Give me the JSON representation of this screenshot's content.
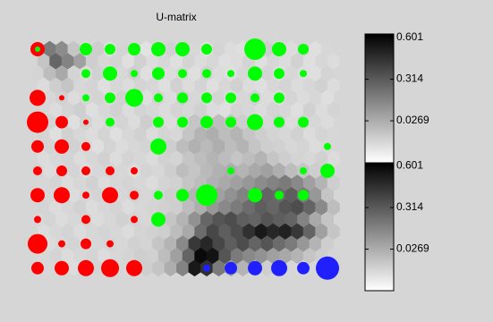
{
  "chart_data": {
    "type": "umatrix",
    "title": "U-matrix",
    "umatrix": [
      [
        -0.12,
        0.2,
        0.14,
        -0.06,
        -0.14,
        -0.09,
        -0.15,
        -0.11,
        -0.12,
        -0.16,
        -0.14,
        -0.1,
        -0.15,
        -0.12,
        -0.16,
        -0.11,
        -0.14,
        -0.15,
        -0.12,
        -0.09,
        -0.15,
        -0.14,
        -0.11,
        -0.15,
        -0.12
      ],
      [
        -0.06,
        0.27,
        0.17,
        0.07,
        -0.09,
        -0.12,
        -0.11,
        -0.15,
        -0.1,
        -0.14,
        -0.12,
        -0.15,
        -0.11,
        -0.14,
        -0.12,
        -0.15,
        -0.14,
        -0.11,
        -0.15,
        -0.12,
        -0.14,
        -0.1,
        -0.15,
        -0.12,
        -0.14
      ],
      [
        -0.11,
        -0.03,
        0.04,
        -0.11,
        -0.14,
        -0.1,
        -0.15,
        -0.12,
        -0.09,
        -0.15,
        -0.11,
        -0.14,
        -0.12,
        -0.15,
        -0.1,
        -0.14,
        -0.15,
        -0.12,
        -0.14,
        -0.11,
        -0.15,
        -0.12,
        -0.14,
        -0.15,
        -0.11
      ],
      [
        -0.14,
        -0.09,
        -0.06,
        -0.12,
        -0.11,
        -0.15,
        -0.12,
        -0.14,
        -0.11,
        -0.12,
        -0.15,
        -0.1,
        -0.14,
        -0.11,
        -0.15,
        -0.12,
        -0.1,
        -0.14,
        -0.15,
        -0.12,
        -0.11,
        -0.14,
        -0.12,
        -0.1,
        -0.14
      ],
      [
        -0.15,
        -0.12,
        -0.1,
        -0.14,
        -0.12,
        -0.11,
        -0.14,
        -0.1,
        -0.12,
        -0.15,
        -0.11,
        -0.14,
        -0.09,
        -0.12,
        -0.14,
        -0.11,
        -0.15,
        -0.12,
        -0.1,
        -0.14,
        -0.15,
        -0.11,
        -0.14,
        -0.12,
        -0.15
      ],
      [
        -0.12,
        -0.14,
        -0.11,
        -0.09,
        -0.15,
        -0.12,
        -0.1,
        -0.14,
        -0.11,
        -0.12,
        -0.14,
        -0.11,
        -0.12,
        -0.1,
        -0.14,
        -0.15,
        -0.11,
        -0.12,
        -0.14,
        -0.11,
        -0.12,
        -0.15,
        -0.1,
        -0.14,
        -0.11
      ],
      [
        -0.14,
        -0.11,
        -0.12,
        -0.15,
        -0.1,
        -0.14,
        -0.12,
        -0.11,
        -0.14,
        -0.09,
        -0.12,
        -0.14,
        -0.11,
        -0.06,
        -0.09,
        -0.03,
        -0.06,
        -0.09,
        -0.11,
        -0.12,
        -0.1,
        -0.14,
        -0.11,
        -0.12,
        -0.14
      ],
      [
        -0.11,
        -0.15,
        -0.1,
        -0.12,
        -0.14,
        -0.11,
        -0.15,
        -0.12,
        -0.1,
        -0.14,
        -0.11,
        -0.12,
        -0.06,
        0.0,
        0.02,
        -0.03,
        0.0,
        -0.06,
        -0.09,
        -0.11,
        -0.12,
        -0.1,
        -0.14,
        -0.11,
        -0.12
      ],
      [
        -0.12,
        -0.11,
        -0.14,
        -0.1,
        -0.12,
        -0.15,
        -0.11,
        -0.14,
        -0.12,
        -0.11,
        -0.14,
        -0.09,
        -0.03,
        0.01,
        -0.02,
        0.02,
        -0.03,
        0.0,
        -0.06,
        -0.09,
        -0.1,
        -0.12,
        -0.11,
        -0.14,
        -0.12
      ],
      [
        -0.14,
        -0.12,
        -0.11,
        -0.14,
        -0.12,
        -0.1,
        -0.14,
        -0.11,
        -0.12,
        -0.14,
        -0.1,
        -0.11,
        -0.06,
        -0.03,
        0.0,
        -0.03,
        -0.06,
        -0.03,
        0.0,
        -0.06,
        -0.09,
        -0.11,
        -0.12,
        -0.1,
        -0.14
      ],
      [
        -0.11,
        -0.14,
        -0.12,
        -0.11,
        -0.14,
        -0.12,
        -0.11,
        -0.12,
        -0.14,
        -0.11,
        -0.12,
        -0.09,
        -0.03,
        -0.06,
        -0.02,
        0.01,
        0.02,
        0.0,
        0.04,
        0.07,
        0.02,
        -0.03,
        -0.06,
        -0.09,
        -0.11
      ],
      [
        -0.12,
        -0.11,
        -0.14,
        -0.12,
        -0.1,
        -0.14,
        -0.12,
        -0.11,
        -0.12,
        -0.14,
        -0.11,
        -0.1,
        -0.06,
        -0.03,
        0.01,
        0.04,
        0.07,
        0.1,
        0.14,
        0.17,
        0.2,
        0.15,
        0.07,
        0.0,
        -0.09
      ],
      [
        -0.14,
        -0.12,
        -0.11,
        -0.14,
        -0.12,
        -0.11,
        -0.14,
        -0.12,
        -0.1,
        -0.12,
        -0.11,
        -0.09,
        -0.06,
        0.0,
        0.02,
        0.07,
        0.12,
        0.17,
        0.23,
        0.28,
        0.25,
        0.3,
        0.2,
        0.1,
        -0.06
      ],
      [
        -0.11,
        -0.14,
        -0.12,
        -0.1,
        -0.14,
        -0.12,
        -0.11,
        -0.14,
        -0.12,
        -0.11,
        -0.1,
        -0.09,
        -0.03,
        0.02,
        0.1,
        0.15,
        0.2,
        0.25,
        0.3,
        0.27,
        0.33,
        0.36,
        0.28,
        0.15,
        -0.03
      ],
      [
        -0.12,
        -0.11,
        -0.14,
        -0.12,
        -0.11,
        -0.14,
        -0.12,
        -0.1,
        -0.11,
        -0.12,
        -0.09,
        -0.06,
        0.0,
        0.12,
        0.27,
        0.33,
        0.36,
        0.3,
        0.28,
        0.33,
        0.3,
        0.28,
        0.17,
        0.04,
        -0.06
      ],
      [
        -0.14,
        -0.12,
        -0.11,
        -0.14,
        -0.12,
        -0.11,
        -0.12,
        -0.14,
        -0.11,
        -0.1,
        -0.09,
        -0.03,
        0.04,
        0.25,
        0.38,
        0.3,
        0.36,
        0.46,
        0.54,
        0.49,
        0.51,
        0.43,
        0.28,
        0.07,
        -0.06
      ],
      [
        -0.11,
        -0.14,
        -0.12,
        -0.11,
        -0.14,
        -0.12,
        -0.11,
        -0.12,
        -0.1,
        -0.11,
        -0.06,
        0.0,
        0.15,
        0.43,
        0.49,
        0.38,
        0.3,
        0.36,
        0.28,
        0.33,
        0.25,
        0.2,
        0.1,
        0.0,
        -0.09
      ],
      [
        -0.12,
        -0.11,
        -0.14,
        -0.12,
        -0.11,
        -0.14,
        -0.12,
        -0.11,
        -0.09,
        -0.1,
        -0.03,
        0.07,
        0.28,
        0.59,
        0.56,
        0.33,
        0.2,
        0.15,
        0.12,
        0.07,
        0.04,
        0.0,
        -0.06,
        -0.09,
        -0.11
      ],
      [
        -0.14,
        -0.12,
        -0.11,
        -0.14,
        -0.12,
        -0.11,
        -0.14,
        -0.12,
        -0.11,
        -0.09,
        -0.06,
        0.02,
        0.17,
        0.54,
        0.46,
        0.2,
        0.07,
        0.0,
        -0.06,
        -0.09,
        -0.11,
        -0.12,
        -0.14,
        -0.12,
        -0.14
      ]
    ],
    "units": [
      {
        "row": 0,
        "col": 0,
        "color": "#ff0000",
        "size": 8
      },
      {
        "row": 0,
        "col": 0,
        "color": "#00ff00",
        "size": 3
      },
      {
        "row": 0,
        "col": 2,
        "color": "#00ff00",
        "size": 7
      },
      {
        "row": 0,
        "col": 3,
        "color": "#00ff00",
        "size": 6
      },
      {
        "row": 0,
        "col": 4,
        "color": "#00ff00",
        "size": 7
      },
      {
        "row": 0,
        "col": 5,
        "color": "#00ff00",
        "size": 8
      },
      {
        "row": 0,
        "col": 6,
        "color": "#00ff00",
        "size": 8
      },
      {
        "row": 0,
        "col": 7,
        "color": "#00ff00",
        "size": 6
      },
      {
        "row": 0,
        "col": 9,
        "color": "#00ff00",
        "size": 12
      },
      {
        "row": 0,
        "col": 10,
        "color": "#00ff00",
        "size": 8
      },
      {
        "row": 0,
        "col": 11,
        "color": "#00ff00",
        "size": 6
      },
      {
        "row": 1,
        "col": 2,
        "color": "#00ff00",
        "size": 5
      },
      {
        "row": 1,
        "col": 3,
        "color": "#00ff00",
        "size": 8
      },
      {
        "row": 1,
        "col": 4,
        "color": "#00ff00",
        "size": 4
      },
      {
        "row": 1,
        "col": 5,
        "color": "#00ff00",
        "size": 7
      },
      {
        "row": 1,
        "col": 6,
        "color": "#00ff00",
        "size": 5
      },
      {
        "row": 1,
        "col": 7,
        "color": "#00ff00",
        "size": 5
      },
      {
        "row": 1,
        "col": 8,
        "color": "#00ff00",
        "size": 4
      },
      {
        "row": 1,
        "col": 9,
        "color": "#00ff00",
        "size": 8
      },
      {
        "row": 1,
        "col": 10,
        "color": "#00ff00",
        "size": 6
      },
      {
        "row": 1,
        "col": 11,
        "color": "#00ff00",
        "size": 4
      },
      {
        "row": 2,
        "col": 0,
        "color": "#ff0000",
        "size": 9
      },
      {
        "row": 2,
        "col": 1,
        "color": "#ff0000",
        "size": 3
      },
      {
        "row": 2,
        "col": 2,
        "color": "#00ff00",
        "size": 4
      },
      {
        "row": 2,
        "col": 3,
        "color": "#00ff00",
        "size": 6
      },
      {
        "row": 2,
        "col": 4,
        "color": "#00ff00",
        "size": 10
      },
      {
        "row": 2,
        "col": 5,
        "color": "#00ff00",
        "size": 5
      },
      {
        "row": 2,
        "col": 6,
        "color": "#00ff00",
        "size": 6
      },
      {
        "row": 2,
        "col": 7,
        "color": "#00ff00",
        "size": 6
      },
      {
        "row": 2,
        "col": 8,
        "color": "#00ff00",
        "size": 6
      },
      {
        "row": 2,
        "col": 9,
        "color": "#00ff00",
        "size": 5
      },
      {
        "row": 2,
        "col": 10,
        "color": "#00ff00",
        "size": 6
      },
      {
        "row": 3,
        "col": 0,
        "color": "#ff0000",
        "size": 12
      },
      {
        "row": 3,
        "col": 1,
        "color": "#ff0000",
        "size": 7
      },
      {
        "row": 3,
        "col": 2,
        "color": "#ff0000",
        "size": 3
      },
      {
        "row": 3,
        "col": 3,
        "color": "#00ff00",
        "size": 5
      },
      {
        "row": 3,
        "col": 5,
        "color": "#00ff00",
        "size": 6
      },
      {
        "row": 3,
        "col": 6,
        "color": "#00ff00",
        "size": 6
      },
      {
        "row": 3,
        "col": 7,
        "color": "#00ff00",
        "size": 7
      },
      {
        "row": 3,
        "col": 8,
        "color": "#00ff00",
        "size": 6
      },
      {
        "row": 3,
        "col": 9,
        "color": "#00ff00",
        "size": 9
      },
      {
        "row": 3,
        "col": 10,
        "color": "#00ff00",
        "size": 6
      },
      {
        "row": 3,
        "col": 11,
        "color": "#00ff00",
        "size": 6
      },
      {
        "row": 4,
        "col": 0,
        "color": "#ff0000",
        "size": 7
      },
      {
        "row": 4,
        "col": 1,
        "color": "#ff0000",
        "size": 8
      },
      {
        "row": 4,
        "col": 2,
        "color": "#ff0000",
        "size": 5
      },
      {
        "row": 4,
        "col": 5,
        "color": "#00ff00",
        "size": 9
      },
      {
        "row": 4,
        "col": 12,
        "color": "#00ff00",
        "size": 4
      },
      {
        "row": 5,
        "col": 0,
        "color": "#ff0000",
        "size": 5
      },
      {
        "row": 5,
        "col": 1,
        "color": "#ff0000",
        "size": 6
      },
      {
        "row": 5,
        "col": 2,
        "color": "#ff0000",
        "size": 5
      },
      {
        "row": 5,
        "col": 3,
        "color": "#ff0000",
        "size": 5
      },
      {
        "row": 5,
        "col": 4,
        "color": "#ff0000",
        "size": 4
      },
      {
        "row": 5,
        "col": 8,
        "color": "#00ff00",
        "size": 4
      },
      {
        "row": 5,
        "col": 11,
        "color": "#00ff00",
        "size": 4
      },
      {
        "row": 5,
        "col": 12,
        "color": "#00ff00",
        "size": 8
      },
      {
        "row": 6,
        "col": 0,
        "color": "#ff0000",
        "size": 8
      },
      {
        "row": 6,
        "col": 1,
        "color": "#ff0000",
        "size": 9
      },
      {
        "row": 6,
        "col": 2,
        "color": "#ff0000",
        "size": 4
      },
      {
        "row": 6,
        "col": 3,
        "color": "#ff0000",
        "size": 9
      },
      {
        "row": 6,
        "col": 4,
        "color": "#ff0000",
        "size": 5
      },
      {
        "row": 6,
        "col": 5,
        "color": "#00ff00",
        "size": 5
      },
      {
        "row": 6,
        "col": 6,
        "color": "#00ff00",
        "size": 7
      },
      {
        "row": 6,
        "col": 7,
        "color": "#00ff00",
        "size": 12
      },
      {
        "row": 6,
        "col": 9,
        "color": "#00ff00",
        "size": 8
      },
      {
        "row": 6,
        "col": 10,
        "color": "#00ff00",
        "size": 5
      },
      {
        "row": 6,
        "col": 11,
        "color": "#00ff00",
        "size": 6
      },
      {
        "row": 7,
        "col": 0,
        "color": "#ff0000",
        "size": 4
      },
      {
        "row": 7,
        "col": 2,
        "color": "#ff0000",
        "size": 5
      },
      {
        "row": 7,
        "col": 4,
        "color": "#ff0000",
        "size": 4
      },
      {
        "row": 7,
        "col": 5,
        "color": "#00ff00",
        "size": 8
      },
      {
        "row": 8,
        "col": 0,
        "color": "#ff0000",
        "size": 11
      },
      {
        "row": 8,
        "col": 1,
        "color": "#ff0000",
        "size": 4
      },
      {
        "row": 8,
        "col": 2,
        "color": "#ff0000",
        "size": 6
      },
      {
        "row": 8,
        "col": 3,
        "color": "#ff0000",
        "size": 4
      },
      {
        "row": 9,
        "col": 0,
        "color": "#ff0000",
        "size": 7
      },
      {
        "row": 9,
        "col": 1,
        "color": "#ff0000",
        "size": 8
      },
      {
        "row": 9,
        "col": 2,
        "color": "#ff0000",
        "size": 9
      },
      {
        "row": 9,
        "col": 3,
        "color": "#ff0000",
        "size": 10
      },
      {
        "row": 9,
        "col": 4,
        "color": "#ff0000",
        "size": 9
      },
      {
        "row": 9,
        "col": 7,
        "color": "#2020ff",
        "size": 4
      },
      {
        "row": 9,
        "col": 8,
        "color": "#2020ff",
        "size": 7
      },
      {
        "row": 9,
        "col": 9,
        "color": "#2020ff",
        "size": 8
      },
      {
        "row": 9,
        "col": 10,
        "color": "#2020ff",
        "size": 9
      },
      {
        "row": 9,
        "col": 11,
        "color": "#2020ff",
        "size": 7
      },
      {
        "row": 9,
        "col": 12,
        "color": "#2020ff",
        "size": 13
      }
    ],
    "colorbar": [
      {
        "ylim": [
          -0.26,
          0.626
        ],
        "ticks": [
          0.601,
          0.314,
          0.0269
        ]
      },
      {
        "ylim": [
          -0.26,
          0.626
        ],
        "ticks": [
          0.601,
          0.314,
          0.0269
        ]
      }
    ]
  }
}
